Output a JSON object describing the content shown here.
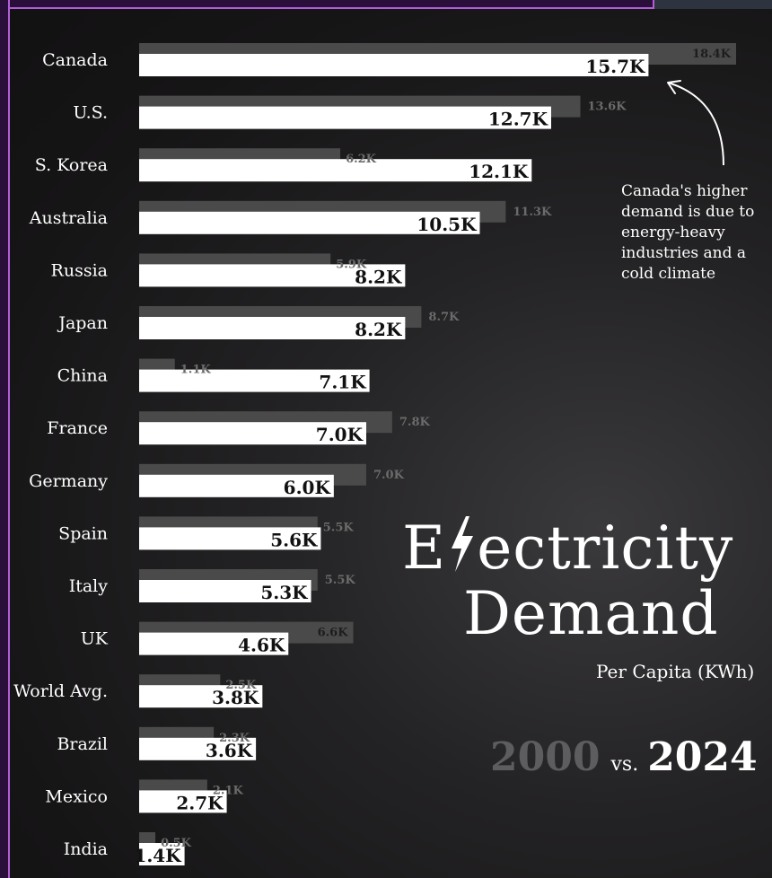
{
  "chart_data": {
    "type": "bar",
    "title_prefix": "E",
    "title_rest": "ectricity",
    "title_line2": "Demand",
    "subtitle": "Per Capita (KWh)",
    "year_a": "2000",
    "vs": "vs.",
    "year_b": "2024",
    "annotation": "Canada's higher demand is due to energy-heavy industries and a cold climate",
    "units": "KWh per capita",
    "series": [
      {
        "name": "2000"
      },
      {
        "name": "2024"
      }
    ],
    "rows": [
      {
        "country": "Canada",
        "flag": "canada-flag-icon",
        "v2000": 18.4,
        "v2024": 15.7,
        "l2000": "18.4K",
        "l2024": "15.7K"
      },
      {
        "country": "U.S.",
        "flag": "usa-flag-icon",
        "v2000": 13.6,
        "v2024": 12.7,
        "l2000": "13.6K",
        "l2024": "12.7K"
      },
      {
        "country": "S. Korea",
        "flag": "south-korea-flag-icon",
        "v2000": 6.2,
        "v2024": 12.1,
        "l2000": "6.2K",
        "l2024": "12.1K"
      },
      {
        "country": "Australia",
        "flag": "australia-flag-icon",
        "v2000": 11.3,
        "v2024": 10.5,
        "l2000": "11.3K",
        "l2024": "10.5K"
      },
      {
        "country": "Russia",
        "flag": "russia-flag-icon",
        "v2000": 5.9,
        "v2024": 8.2,
        "l2000": "5.9K",
        "l2024": "8.2K"
      },
      {
        "country": "Japan",
        "flag": "japan-flag-icon",
        "v2000": 8.7,
        "v2024": 8.2,
        "l2000": "8.7K",
        "l2024": "8.2K"
      },
      {
        "country": "China",
        "flag": "china-flag-icon",
        "v2000": 1.1,
        "v2024": 7.1,
        "l2000": "1.1K",
        "l2024": "7.1K"
      },
      {
        "country": "France",
        "flag": "france-flag-icon",
        "v2000": 7.8,
        "v2024": 7.0,
        "l2000": "7.8K",
        "l2024": "7.0K"
      },
      {
        "country": "Germany",
        "flag": "germany-flag-icon",
        "v2000": 7.0,
        "v2024": 6.0,
        "l2000": "7.0K",
        "l2024": "6.0K"
      },
      {
        "country": "Spain",
        "flag": "spain-flag-icon",
        "v2000": 5.5,
        "v2024": 5.6,
        "l2000": "5.5K",
        "l2024": "5.6K"
      },
      {
        "country": "Italy",
        "flag": "italy-flag-icon",
        "v2000": 5.5,
        "v2024": 5.3,
        "l2000": "5.5K",
        "l2024": "5.3K"
      },
      {
        "country": "UK",
        "flag": "uk-flag-icon",
        "v2000": 6.6,
        "v2024": 4.6,
        "l2000": "6.6K",
        "l2024": "4.6K"
      },
      {
        "country": "World Avg.",
        "flag": "globe-icon",
        "v2000": 2.5,
        "v2024": 3.8,
        "l2000": "2.5K",
        "l2024": "3.8K"
      },
      {
        "country": "Brazil",
        "flag": "brazil-flag-icon",
        "v2000": 2.3,
        "v2024": 3.6,
        "l2000": "2.3K",
        "l2024": "3.6K"
      },
      {
        "country": "Mexico",
        "flag": "mexico-flag-icon",
        "v2000": 2.1,
        "v2024": 2.7,
        "l2000": "2.1K",
        "l2024": "2.7K"
      },
      {
        "country": "India",
        "flag": "india-flag-icon",
        "v2000": 0.5,
        "v2024": 1.4,
        "l2000": "0.5K",
        "l2024": "1.4K"
      }
    ],
    "colors": {
      "bar_2000": "#4a4a4a",
      "bar_2024": "#ffffff",
      "label_2000": "#6b6b6b",
      "label_2024": "#111111",
      "background": "#1c1b1d"
    }
  }
}
